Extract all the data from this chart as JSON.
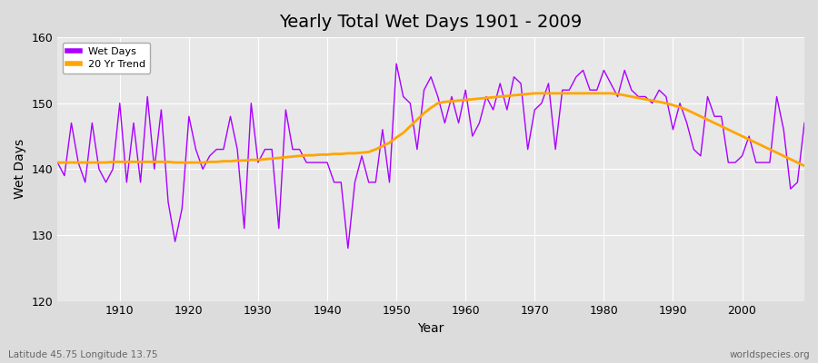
{
  "title": "Yearly Total Wet Days 1901 - 2009",
  "xlabel": "Year",
  "ylabel": "Wet Days",
  "bottom_left_label": "Latitude 45.75 Longitude 13.75",
  "bottom_right_label": "worldspecies.org",
  "line_color": "#AA00FF",
  "trend_color": "#FFA500",
  "background_color": "#DCDCDC",
  "plot_bg_color": "#E8E8E8",
  "ylim": [
    120,
    160
  ],
  "xlim": [
    1901,
    2009
  ],
  "title_fontsize": 14,
  "years": [
    1901,
    1902,
    1903,
    1904,
    1905,
    1906,
    1907,
    1908,
    1909,
    1910,
    1911,
    1912,
    1913,
    1914,
    1915,
    1916,
    1917,
    1918,
    1919,
    1920,
    1921,
    1922,
    1923,
    1924,
    1925,
    1926,
    1927,
    1928,
    1929,
    1930,
    1931,
    1932,
    1933,
    1934,
    1935,
    1936,
    1937,
    1938,
    1939,
    1940,
    1941,
    1942,
    1943,
    1944,
    1945,
    1946,
    1947,
    1948,
    1949,
    1950,
    1951,
    1952,
    1953,
    1954,
    1955,
    1956,
    1957,
    1958,
    1959,
    1960,
    1961,
    1962,
    1963,
    1964,
    1965,
    1966,
    1967,
    1968,
    1969,
    1970,
    1971,
    1972,
    1973,
    1974,
    1975,
    1976,
    1977,
    1978,
    1979,
    1980,
    1981,
    1982,
    1983,
    1984,
    1985,
    1986,
    1987,
    1988,
    1989,
    1990,
    1991,
    1992,
    1993,
    1994,
    1995,
    1996,
    1997,
    1998,
    1999,
    2000,
    2001,
    2002,
    2003,
    2004,
    2005,
    2006,
    2007,
    2008,
    2009
  ],
  "wet_days": [
    141,
    139,
    147,
    141,
    138,
    147,
    140,
    138,
    140,
    150,
    138,
    147,
    138,
    151,
    140,
    149,
    135,
    129,
    134,
    148,
    143,
    140,
    142,
    143,
    143,
    148,
    143,
    131,
    150,
    141,
    143,
    143,
    131,
    149,
    143,
    143,
    141,
    141,
    141,
    141,
    138,
    138,
    128,
    138,
    142,
    138,
    138,
    146,
    138,
    156,
    151,
    150,
    143,
    152,
    154,
    151,
    147,
    151,
    147,
    152,
    145,
    147,
    151,
    149,
    153,
    149,
    154,
    153,
    143,
    149,
    150,
    153,
    143,
    152,
    152,
    154,
    155,
    152,
    152,
    155,
    153,
    151,
    155,
    152,
    151,
    151,
    150,
    152,
    151,
    146,
    150,
    147,
    143,
    142,
    151,
    148,
    148,
    141,
    141,
    142,
    145,
    141,
    141,
    141,
    151,
    146,
    137,
    138,
    147
  ],
  "trend": [
    141.0,
    141.0,
    141.0,
    141.0,
    141.0,
    141.0,
    141.0,
    141.0,
    141.1,
    141.1,
    141.1,
    141.1,
    141.1,
    141.1,
    141.1,
    141.1,
    141.1,
    141.0,
    141.0,
    141.0,
    141.0,
    141.0,
    141.1,
    141.1,
    141.2,
    141.2,
    141.3,
    141.3,
    141.4,
    141.4,
    141.5,
    141.6,
    141.7,
    141.8,
    141.9,
    142.0,
    142.1,
    142.1,
    142.2,
    142.2,
    142.3,
    142.3,
    142.4,
    142.4,
    142.5,
    142.6,
    143.0,
    143.5,
    144.0,
    144.8,
    145.5,
    146.5,
    147.5,
    148.5,
    149.3,
    150.0,
    150.2,
    150.3,
    150.4,
    150.5,
    150.6,
    150.7,
    150.8,
    150.9,
    151.0,
    151.1,
    151.2,
    151.3,
    151.4,
    151.5,
    151.5,
    151.5,
    151.5,
    151.5,
    151.5,
    151.5,
    151.5,
    151.5,
    151.5,
    151.5,
    151.5,
    151.4,
    151.2,
    151.0,
    150.8,
    150.6,
    150.4,
    150.2,
    150.0,
    149.7,
    149.4,
    149.0,
    148.5,
    148.0,
    147.5,
    147.0,
    146.5,
    146.0,
    145.5,
    145.0,
    144.5,
    144.0,
    143.5,
    143.0,
    142.5,
    142.0,
    141.5,
    141.0,
    140.5
  ]
}
